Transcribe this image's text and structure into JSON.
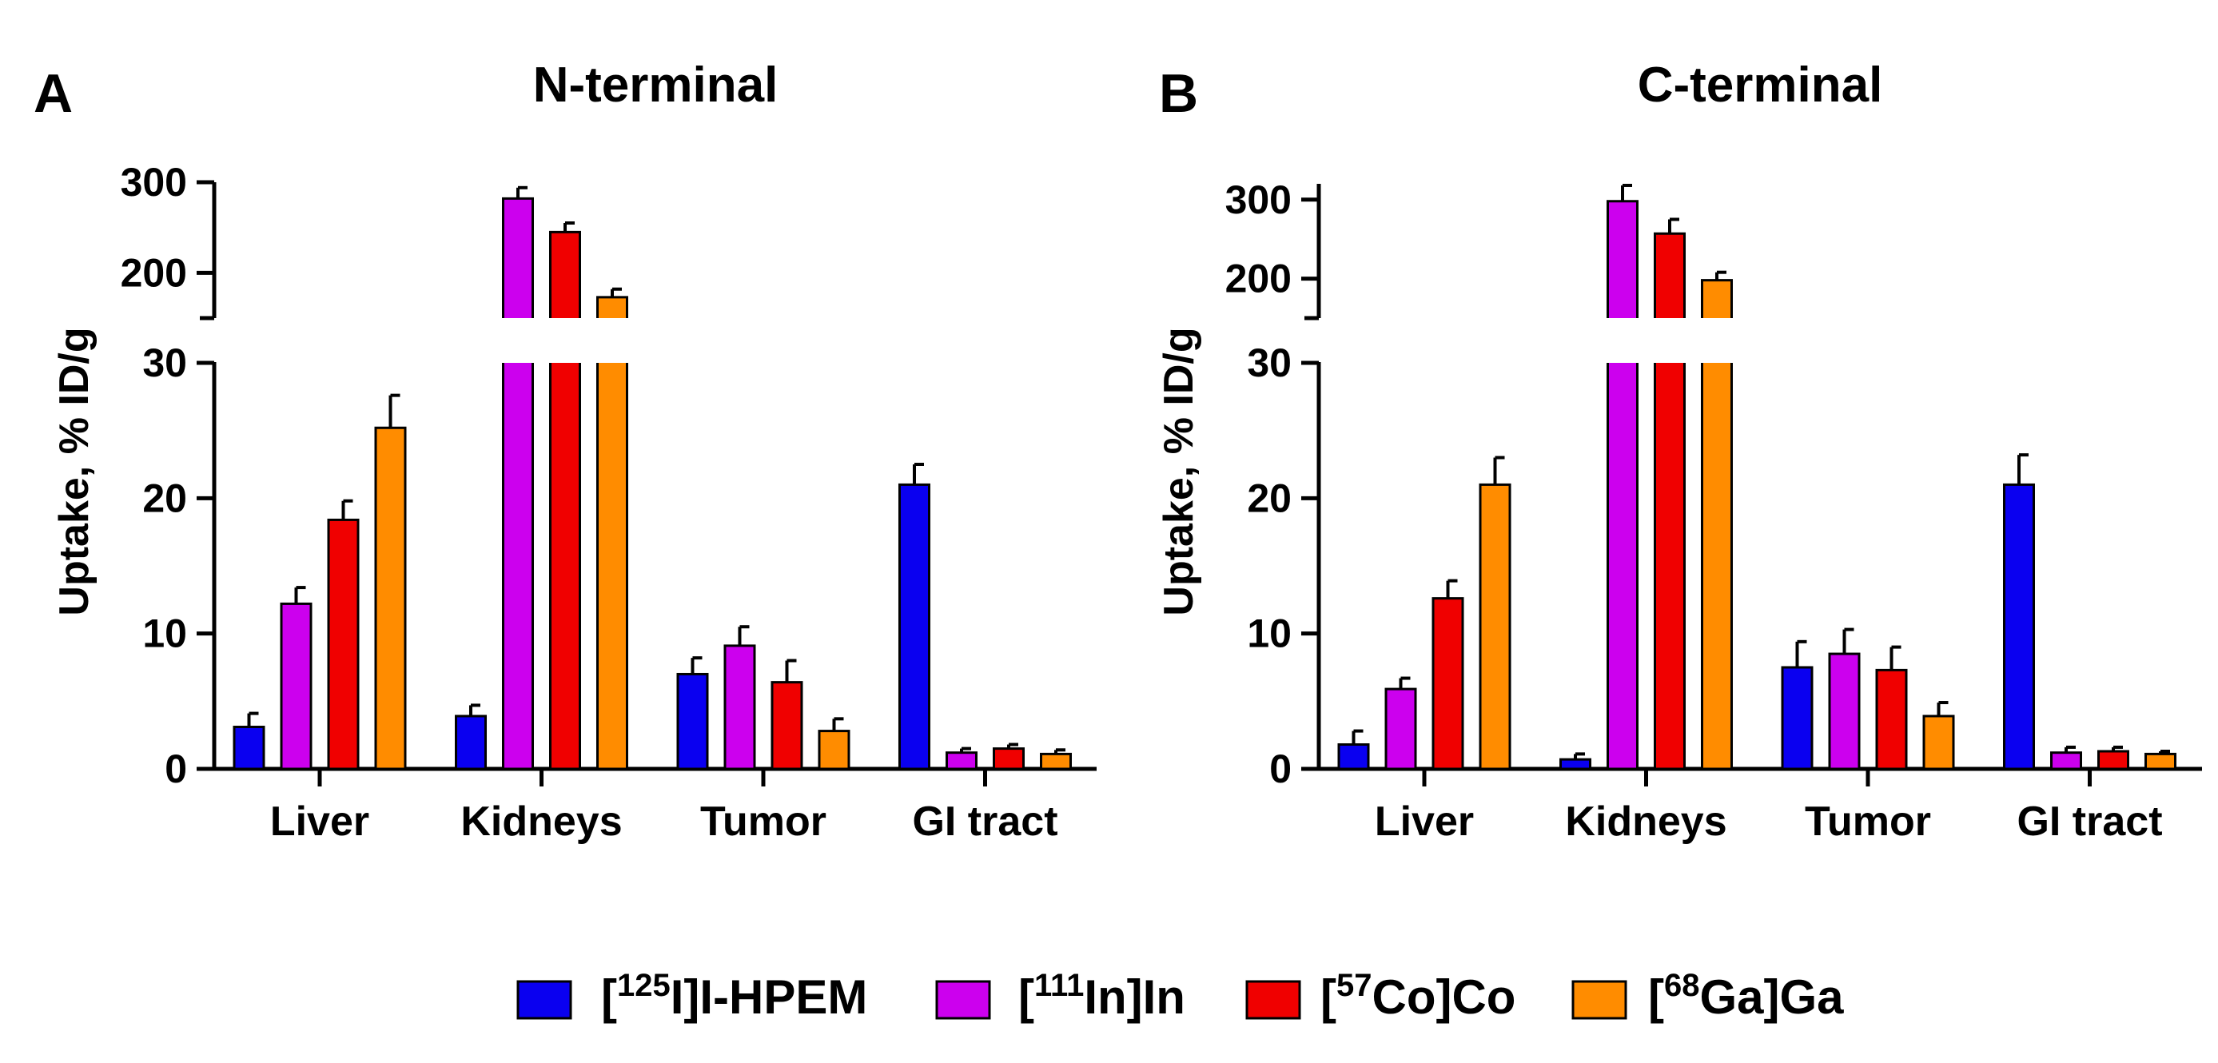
{
  "chart_data": [
    {
      "type": "bar",
      "panel_label": "A",
      "title": "N-terminal",
      "ylabel": "Uptake, % ID/g",
      "xlabel": "",
      "categories": [
        "Liver",
        "Kidneys",
        "Tumor",
        "GI tract"
      ],
      "y_axis_break": true,
      "ylim_lower": [
        0,
        30
      ],
      "ylim_upper": [
        150,
        300
      ],
      "yticks_lower": [
        "0",
        "10",
        "20",
        "30"
      ],
      "yticks_upper": [
        "200",
        "300"
      ],
      "series": [
        {
          "name": "[125I]I-HPEM",
          "values": [
            3.1,
            3.9,
            7.0,
            21.0
          ],
          "errors": [
            1.0,
            0.8,
            1.2,
            1.5
          ]
        },
        {
          "name": "[111In]In",
          "values": [
            12.2,
            282,
            9.1,
            1.2
          ],
          "errors": [
            1.2,
            12,
            1.4,
            0.3
          ]
        },
        {
          "name": "[57Co]Co",
          "values": [
            18.4,
            245,
            6.4,
            1.5
          ],
          "errors": [
            1.4,
            10,
            1.6,
            0.3
          ]
        },
        {
          "name": "[68Ga]Ga",
          "values": [
            25.2,
            173,
            2.8,
            1.1
          ],
          "errors": [
            2.4,
            9,
            0.9,
            0.3
          ]
        }
      ]
    },
    {
      "type": "bar",
      "panel_label": "B",
      "title": "C-terminal",
      "ylabel": "Uptake, % ID/g",
      "xlabel": "",
      "categories": [
        "Liver",
        "Kidneys",
        "Tumor",
        "GI tract"
      ],
      "y_axis_break": true,
      "ylim_lower": [
        0,
        30
      ],
      "ylim_upper": [
        150,
        320
      ],
      "yticks_lower": [
        "0",
        "10",
        "20",
        "30"
      ],
      "yticks_upper": [
        "200",
        "300"
      ],
      "series": [
        {
          "name": "[125I]I-HPEM",
          "values": [
            1.8,
            0.7,
            7.5,
            21.0
          ],
          "errors": [
            1.0,
            0.4,
            1.9,
            2.2
          ]
        },
        {
          "name": "[111In]In",
          "values": [
            5.9,
            298,
            8.5,
            1.2
          ],
          "errors": [
            0.8,
            20,
            1.8,
            0.4
          ]
        },
        {
          "name": "[57Co]Co",
          "values": [
            12.6,
            257,
            7.3,
            1.3
          ],
          "errors": [
            1.3,
            18,
            1.7,
            0.3
          ]
        },
        {
          "name": "[68Ga]Ga",
          "values": [
            21.0,
            198,
            3.9,
            1.1
          ],
          "errors": [
            2.0,
            10,
            1.0,
            0.2
          ]
        }
      ]
    }
  ],
  "legend": {
    "position": "bottom-center",
    "items": [
      {
        "prefix": "[",
        "sup": "125",
        "suffix": "I]I-HPEM",
        "color": "#0a00f0"
      },
      {
        "prefix": "[",
        "sup": "111",
        "suffix": "In]In",
        "color": "#cc00ee"
      },
      {
        "prefix": "[",
        "sup": "57",
        "suffix": "Co]Co",
        "color": "#f00000"
      },
      {
        "prefix": "[",
        "sup": "68",
        "suffix": "Ga]Ga",
        "color": "#ff8c00"
      }
    ]
  }
}
